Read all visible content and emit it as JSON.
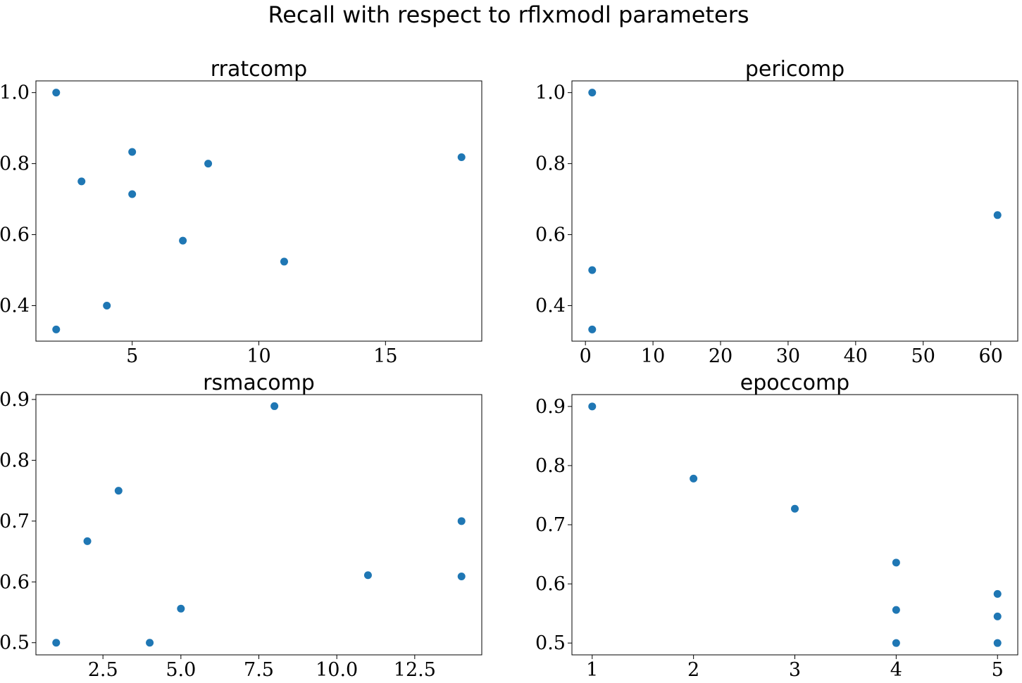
{
  "figure_title": "Recall with respect to rflxmodl parameters",
  "marker_color": "#1f77b4",
  "chart_data": [
    {
      "type": "scatter",
      "title": "rratcomp",
      "xlabel": "",
      "ylabel": "",
      "xlim": [
        1.2,
        18.8
      ],
      "ylim": [
        0.3,
        1.033
      ],
      "xticks": [
        5,
        10,
        15
      ],
      "xtick_labels": [
        "5",
        "10",
        "15"
      ],
      "yticks": [
        0.4,
        0.6,
        0.8,
        1.0
      ],
      "ytick_labels": [
        "0.4",
        "0.6",
        "0.8",
        "1.0"
      ],
      "grid": false,
      "points": [
        {
          "x": 2,
          "y": 1.0
        },
        {
          "x": 2,
          "y": 0.333
        },
        {
          "x": 3,
          "y": 0.75
        },
        {
          "x": 4,
          "y": 0.4
        },
        {
          "x": 5,
          "y": 0.833
        },
        {
          "x": 5,
          "y": 0.714
        },
        {
          "x": 7,
          "y": 0.583
        },
        {
          "x": 8,
          "y": 0.8
        },
        {
          "x": 11,
          "y": 0.524
        },
        {
          "x": 18,
          "y": 0.818
        }
      ]
    },
    {
      "type": "scatter",
      "title": "pericomp",
      "xlabel": "",
      "ylabel": "",
      "xlim": [
        -2,
        64
      ],
      "ylim": [
        0.3,
        1.033
      ],
      "xticks": [
        0,
        10,
        20,
        30,
        40,
        50,
        60
      ],
      "xtick_labels": [
        "0",
        "10",
        "20",
        "30",
        "40",
        "50",
        "60"
      ],
      "yticks": [
        0.4,
        0.6,
        0.8,
        1.0
      ],
      "ytick_labels": [
        "0.4",
        "0.6",
        "0.8",
        "1.0"
      ],
      "grid": false,
      "points": [
        {
          "x": 1,
          "y": 1.0
        },
        {
          "x": 1,
          "y": 0.5
        },
        {
          "x": 1,
          "y": 0.333
        },
        {
          "x": 61,
          "y": 0.655
        }
      ]
    },
    {
      "type": "scatter",
      "title": "rsmacomp",
      "xlabel": "",
      "ylabel": "",
      "xlim": [
        0.35,
        14.65
      ],
      "ylim": [
        0.48,
        0.908
      ],
      "xticks": [
        2.5,
        5.0,
        7.5,
        10.0,
        12.5
      ],
      "xtick_labels": [
        "2.5",
        "5.0",
        "7.5",
        "10.0",
        "12.5"
      ],
      "yticks": [
        0.5,
        0.6,
        0.7,
        0.8,
        0.9
      ],
      "ytick_labels": [
        "0.5",
        "0.6",
        "0.7",
        "0.8",
        "0.9"
      ],
      "grid": false,
      "points": [
        {
          "x": 1,
          "y": 0.5
        },
        {
          "x": 2,
          "y": 0.667
        },
        {
          "x": 3,
          "y": 0.75
        },
        {
          "x": 4,
          "y": 0.5
        },
        {
          "x": 5,
          "y": 0.556
        },
        {
          "x": 8,
          "y": 0.889
        },
        {
          "x": 11,
          "y": 0.611
        },
        {
          "x": 14,
          "y": 0.7
        },
        {
          "x": 14,
          "y": 0.609
        }
      ]
    },
    {
      "type": "scatter",
      "title": "epoccomp",
      "xlabel": "",
      "ylabel": "",
      "xlim": [
        0.8,
        5.2
      ],
      "ylim": [
        0.48,
        0.92
      ],
      "xticks": [
        1,
        2,
        3,
        4,
        5
      ],
      "xtick_labels": [
        "1",
        "2",
        "3",
        "4",
        "5"
      ],
      "yticks": [
        0.5,
        0.6,
        0.7,
        0.8,
        0.9
      ],
      "ytick_labels": [
        "0.5",
        "0.6",
        "0.7",
        "0.8",
        "0.9"
      ],
      "grid": false,
      "points": [
        {
          "x": 1,
          "y": 0.9
        },
        {
          "x": 2,
          "y": 0.778
        },
        {
          "x": 3,
          "y": 0.727
        },
        {
          "x": 4,
          "y": 0.636
        },
        {
          "x": 4,
          "y": 0.556
        },
        {
          "x": 4,
          "y": 0.5
        },
        {
          "x": 5,
          "y": 0.583
        },
        {
          "x": 5,
          "y": 0.545
        },
        {
          "x": 5,
          "y": 0.5
        }
      ]
    }
  ]
}
